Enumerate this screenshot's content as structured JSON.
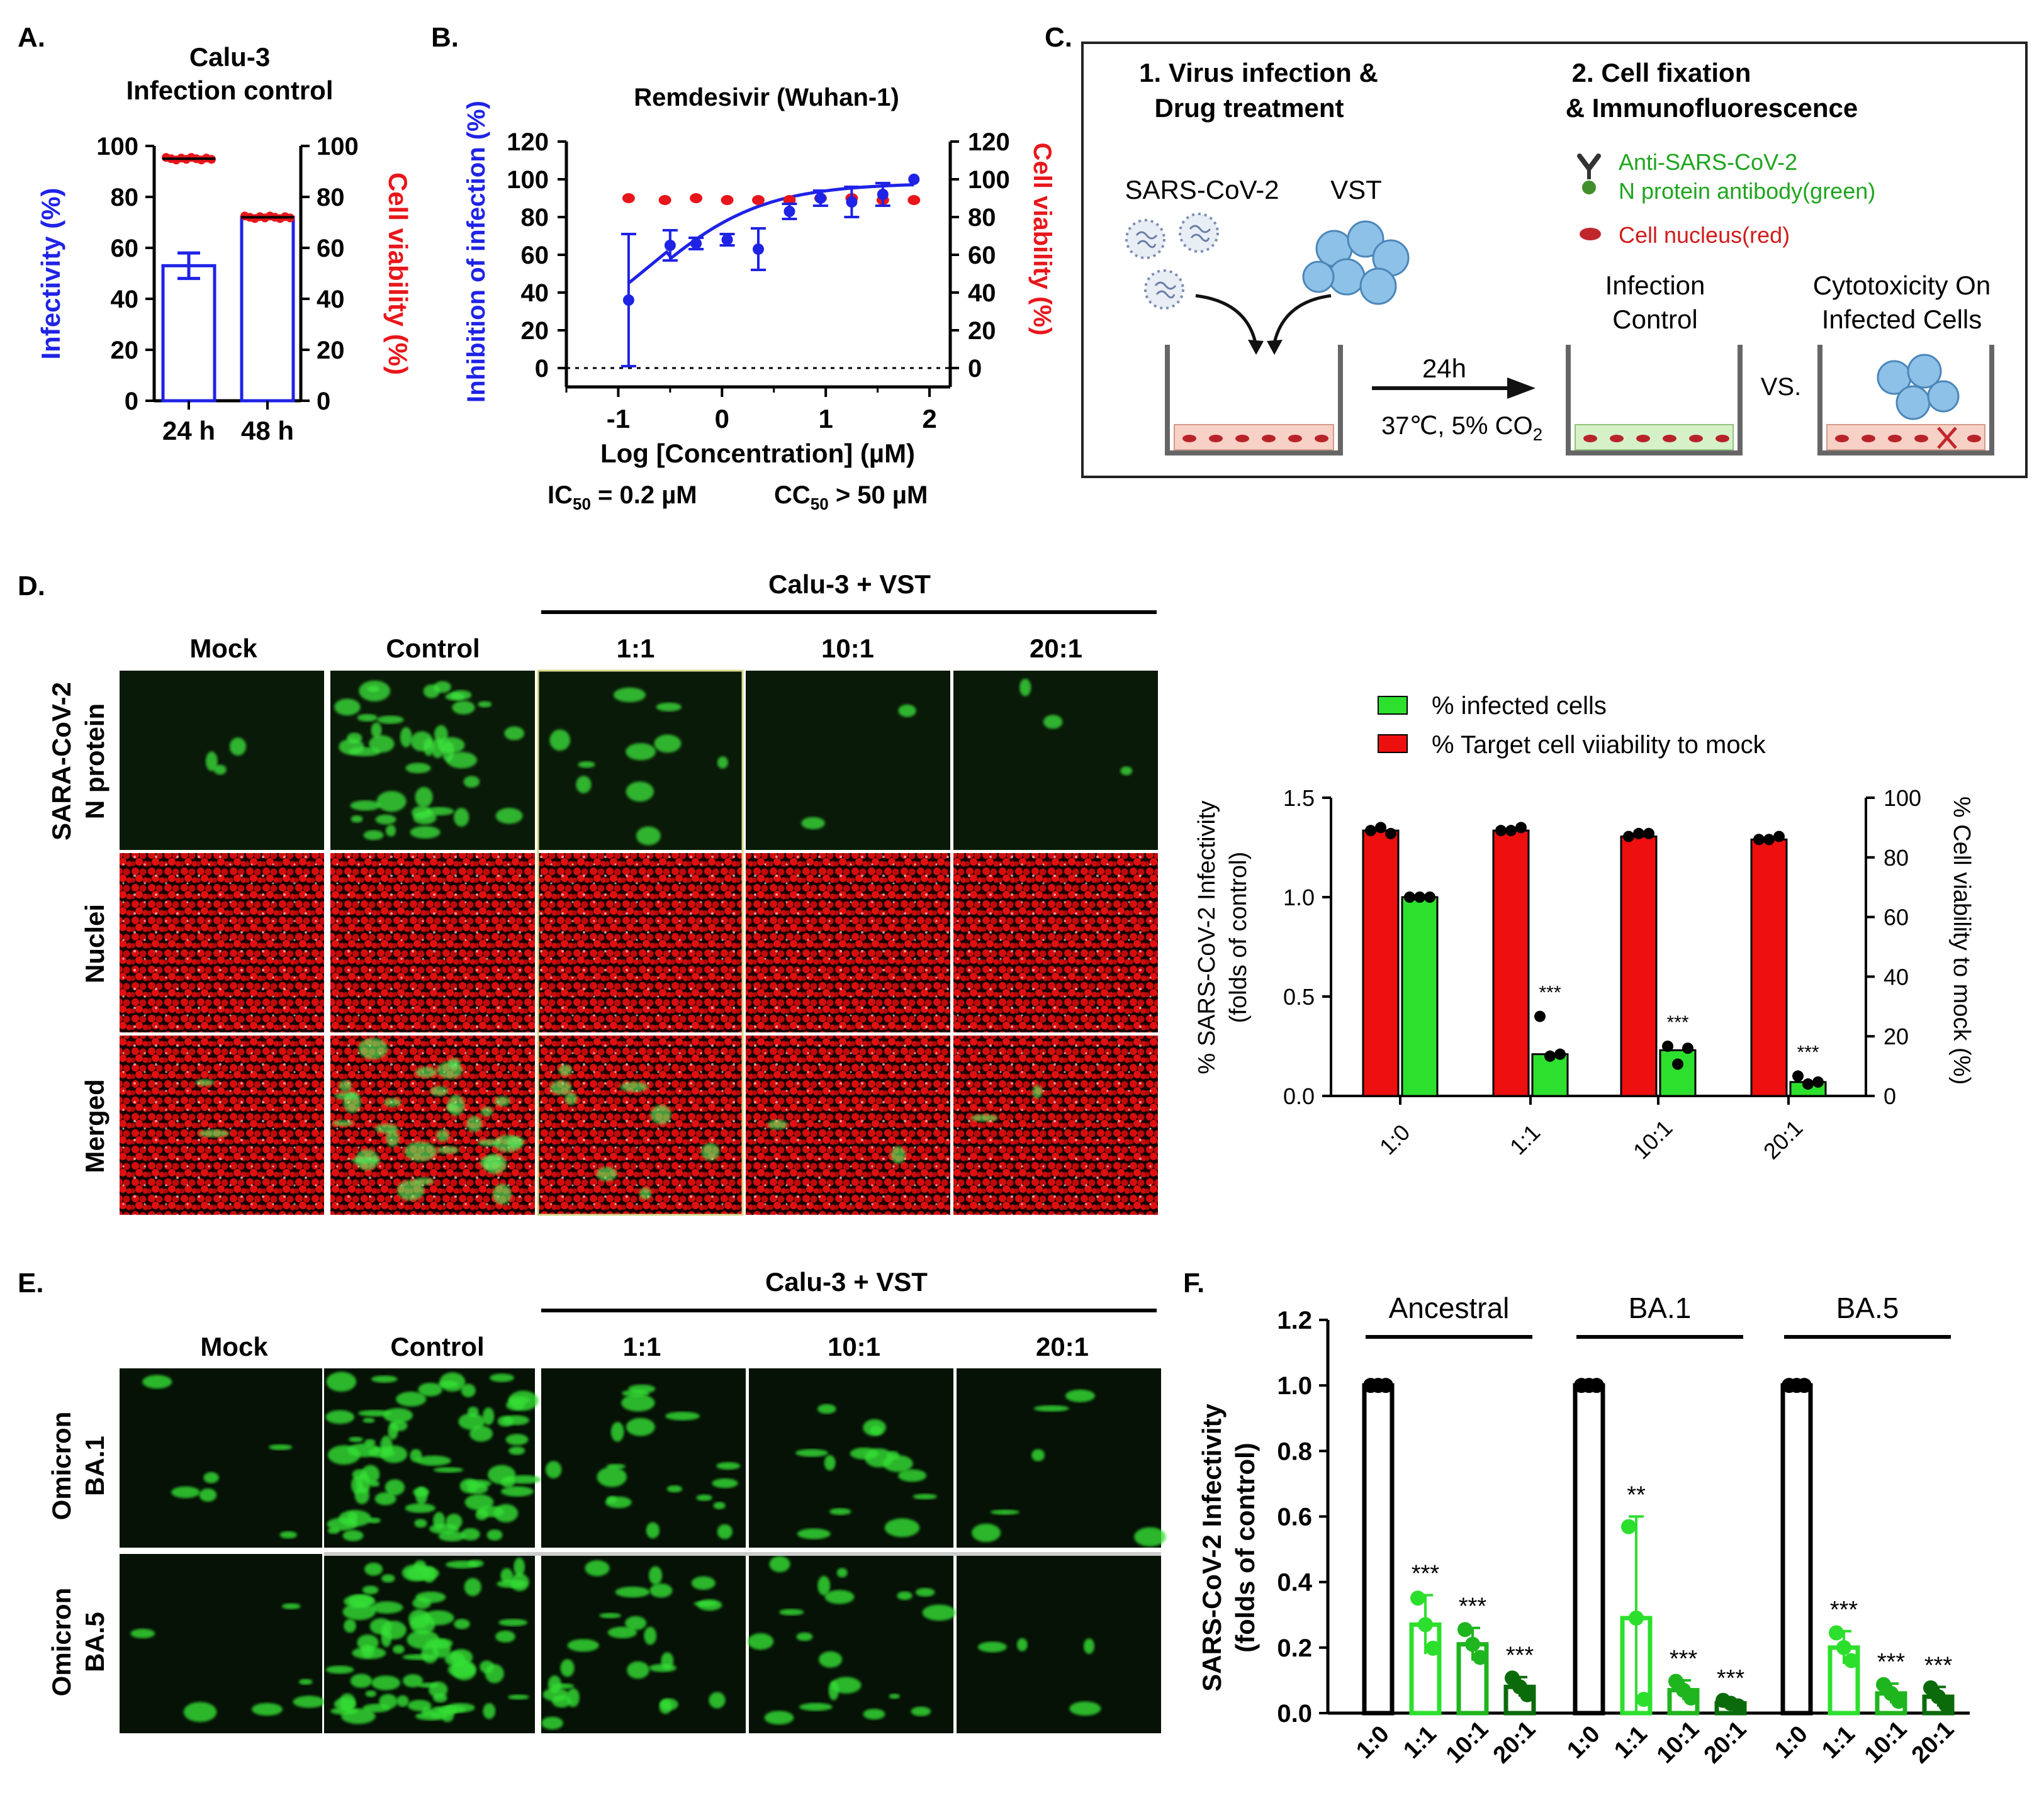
{
  "panel_labels": {
    "A": "A.",
    "B": "B.",
    "C": "C.",
    "D": "D.",
    "E": "E.",
    "F": "F."
  },
  "colors": {
    "blue": "#1f23e6",
    "red": "#e8161b",
    "green_bright": "#2ddf2d",
    "green_mid": "#1fb51f",
    "green_dark": "#0b6b0b",
    "bar_green": "#2ee02e",
    "bar_red": "#ee0f0f",
    "black": "#000000"
  },
  "chart_data": [
    {
      "id": "A",
      "type": "bar",
      "title": "Calu-3\nInfection control",
      "title_line1": "Calu-3",
      "title_line2": "Infection control",
      "categories": [
        "24 h",
        "48 h"
      ],
      "series": [
        {
          "name": "Infectivity (%)",
          "axis": "left",
          "values": [
            53,
            72
          ],
          "errors": [
            5,
            0
          ]
        },
        {
          "name": "Cell viability (%)",
          "axis": "right",
          "values": [
            95,
            72
          ],
          "kind": "points"
        }
      ],
      "ylabel_left": "Infectivity (%)",
      "ylabel_right": "Cell viability (%)",
      "ylim": [
        0,
        100
      ],
      "yticks": [
        "0",
        "20",
        "40",
        "60",
        "80",
        "100"
      ]
    },
    {
      "id": "B",
      "type": "scatter",
      "title": "Remdesivir (Wuhan-1)",
      "xlabel": "Log [Concentration] (µM)",
      "ylabel_left": "Inhibition of infection (%)",
      "ylabel_right": "Cell viability (%)",
      "xlim": [
        -1.5,
        2.2
      ],
      "ylim": [
        -10,
        120
      ],
      "xticks": [
        "-1",
        "0",
        "1",
        "2"
      ],
      "yticks": [
        "0",
        "20",
        "40",
        "60",
        "80",
        "100",
        "120"
      ],
      "inhibition": {
        "x": [
          -0.9,
          -0.5,
          -0.25,
          0.05,
          0.35,
          0.65,
          0.95,
          1.25,
          1.55,
          1.85
        ],
        "y": [
          36,
          65,
          66,
          68,
          63,
          83,
          90,
          88,
          92,
          100
        ],
        "err": [
          35,
          8,
          3,
          3,
          11,
          4,
          4,
          8,
          6,
          0
        ]
      },
      "viability": {
        "x": [
          -0.9,
          -0.55,
          -0.25,
          0.05,
          0.35,
          0.65,
          0.95,
          1.25,
          1.55,
          1.85
        ],
        "y": [
          90,
          89,
          90,
          89,
          89,
          89,
          90,
          90,
          89,
          89
        ]
      },
      "ic50": "IC",
      "ic50_sub": "50",
      "ic50_value": " = 0.2 µM",
      "cc50": "CC",
      "cc50_sub": "50",
      "cc50_value": " > 50 µM"
    },
    {
      "id": "D",
      "type": "bar",
      "categories": [
        "1:0",
        "1:1",
        "10:1",
        "20:1"
      ],
      "legend": [
        "% infected cells",
        "% Target cell viiability to mock"
      ],
      "series": [
        {
          "name": "% Target cell viiability to mock",
          "axis": "right",
          "values": [
            89,
            89,
            87,
            86
          ],
          "points": [
            [
              89,
              90,
              88
            ],
            [
              89,
              89,
              90
            ],
            [
              87,
              88,
              88
            ],
            [
              86,
              86,
              87
            ]
          ]
        },
        {
          "name": "% infected cells",
          "axis": "left",
          "values": [
            1.0,
            0.21,
            0.23,
            0.07
          ],
          "points": [
            [
              1.0,
              1.0,
              1.0
            ],
            [
              0.4,
              0.2,
              0.21
            ],
            [
              0.25,
              0.16,
              0.24
            ],
            [
              0.1,
              0.06,
              0.07
            ]
          ]
        }
      ],
      "significance": [
        "",
        "***",
        "***",
        "***"
      ],
      "ylabel_left": "% SARS-CoV-2 Infectivity\n(folds of control)",
      "ylabel_left_1": "% SARS-CoV-2 Infectivity",
      "ylabel_left_2": "(folds of control)",
      "ylabel_right": "% Cell viability to mock (%)",
      "ylim_left": [
        0,
        1.5
      ],
      "ylim_right": [
        0,
        100
      ],
      "yticks_left": [
        "0.0",
        "0.5",
        "1.0",
        "1.5"
      ],
      "yticks_right": [
        "0",
        "20",
        "40",
        "60",
        "80",
        "100"
      ]
    },
    {
      "id": "F",
      "type": "bar",
      "groups": [
        "Ancestral",
        "BA.1",
        "BA.5"
      ],
      "categories": [
        "1:0",
        "1:1",
        "10:1",
        "20:1"
      ],
      "series": [
        {
          "name": "Ancestral",
          "values": [
            1.0,
            0.27,
            0.21,
            0.08
          ],
          "errors": [
            0,
            0.09,
            0.05,
            0.03
          ],
          "significance": [
            "",
            "***",
            "***",
            "***"
          ]
        },
        {
          "name": "BA.1",
          "values": [
            1.0,
            0.29,
            0.07,
            0.03
          ],
          "errors": [
            0,
            0.31,
            0.03,
            0.01
          ],
          "significance": [
            "",
            "**",
            "***",
            "***"
          ]
        },
        {
          "name": "BA.5",
          "values": [
            1.0,
            0.2,
            0.06,
            0.05
          ],
          "errors": [
            0,
            0.05,
            0.03,
            0.03
          ],
          "significance": [
            "",
            "***",
            "***",
            "***"
          ]
        }
      ],
      "ylabel": "SARS-CoV-2 Infectivity\n(folds of control)",
      "ylabel_1": "SARS-CoV-2 Infectivity",
      "ylabel_2": "(folds of control)",
      "ylim": [
        0,
        1.2
      ],
      "yticks": [
        "0.0",
        "0.2",
        "0.4",
        "0.6",
        "0.8",
        "1.0",
        "1.2"
      ]
    }
  ],
  "schematic": {
    "step1_line1": "1. Virus infection &",
    "step1_line2": "Drug treatment",
    "step2_line1": "2. Cell fixation",
    "step2_line2": "& Immunofluorescence",
    "virus_label": "SARS-CoV-2",
    "vst_label": "VST",
    "antibody_line1": "Anti-SARS-CoV-2",
    "antibody_line2": "N protein antibody(green)",
    "nucleus_label": "Cell nucleus(red)",
    "infection_control_1": "Infection",
    "infection_control_2": "Control",
    "cytotox_1": "Cytotoxicity On",
    "cytotox_2": "Infected Cells",
    "time": "24h",
    "condition": "37℃, 5% CO",
    "condition_sub": "2",
    "vs": "VS."
  },
  "panel_d_grid": {
    "header": "Calu-3 + VST",
    "columns": [
      "Mock",
      "Control",
      "1:1",
      "10:1",
      "20:1"
    ],
    "rows": [
      "SARA-CoV-2\nN protein",
      "Nuclei",
      "Merged"
    ],
    "row1_line1": "SARA-CoV-2",
    "row1_line2": "N protein",
    "row2": "Nuclei",
    "row3": "Merged"
  },
  "panel_e_grid": {
    "header": "Calu-3 + VST",
    "columns": [
      "Mock",
      "Control",
      "1:1",
      "10:1",
      "20:1"
    ],
    "row1_line1": "Omicron",
    "row1_line2": "BA.1",
    "row2_line1": "Omicron",
    "row2_line2": "BA.5"
  }
}
